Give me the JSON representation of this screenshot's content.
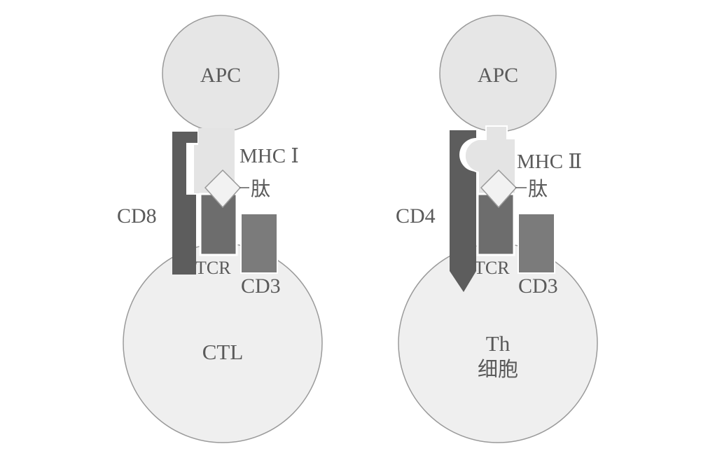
{
  "colors": {
    "cell_fill": "#efefef",
    "cell_stroke": "#9a9a9a",
    "apc_fill": "#e6e6e6",
    "mhc_fill": "#e4e4e4",
    "coreceptor_fill": "#5d5d5d",
    "tcr_fill": "#6d6d6d",
    "cd3_fill": "#7b7b7b",
    "peptide_fill": "#f2f2f2",
    "text": "#5a5a5a"
  },
  "panels": [
    {
      "apc_label": "APC",
      "mhc_label": "MHC Ⅰ",
      "peptide_label": "肽",
      "coreceptor_label": "CD8",
      "tcr_label": "TCR",
      "cd3_label": "CD3",
      "cell_label_line1": "CTL",
      "cell_label_line2": ""
    },
    {
      "apc_label": "APC",
      "mhc_label": "MHC Ⅱ",
      "peptide_label": "肽",
      "coreceptor_label": "CD4",
      "tcr_label": "TCR",
      "cd3_label": "CD3",
      "cell_label_line1": "Th",
      "cell_label_line2": "细胞"
    }
  ]
}
